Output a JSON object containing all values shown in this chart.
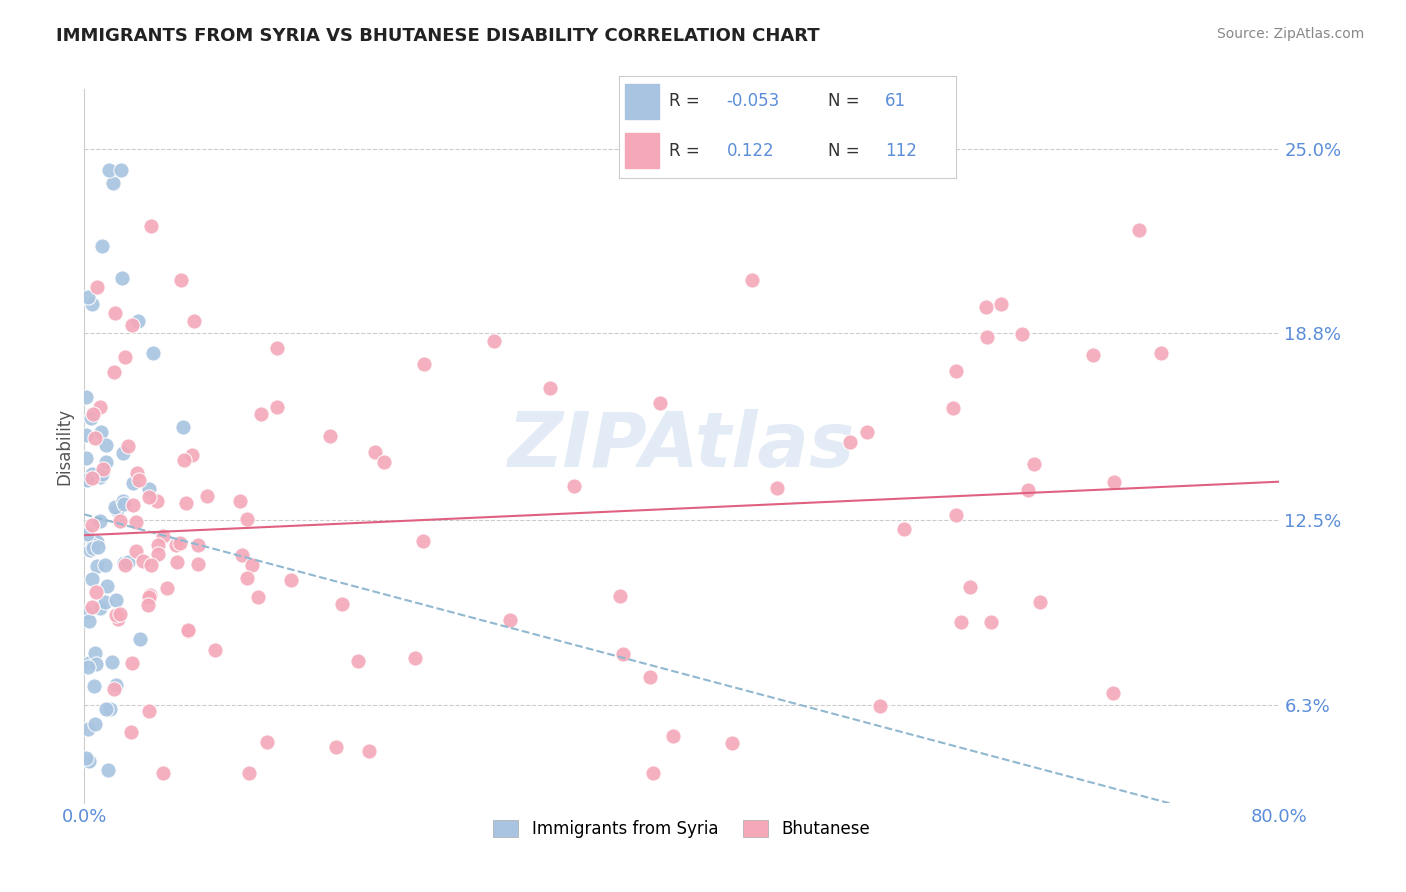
{
  "title": "IMMIGRANTS FROM SYRIA VS BHUTANESE DISABILITY CORRELATION CHART",
  "source": "Source: ZipAtlas.com",
  "ylabel": "Disability",
  "xlim": [
    0.0,
    0.8
  ],
  "ylim": [
    0.03,
    0.27
  ],
  "yticks": [
    0.063,
    0.125,
    0.188,
    0.25
  ],
  "ytick_labels": [
    "6.3%",
    "12.5%",
    "18.8%",
    "25.0%"
  ],
  "xtick_labels": [
    "0.0%",
    "80.0%"
  ],
  "legend_r1": "-0.053",
  "legend_n1": "61",
  "legend_r2": "0.122",
  "legend_n2": "112",
  "color_syria": "#a8c4e0",
  "color_bhutanese": "#f4a8b8",
  "color_line_syria": "#90b8d0",
  "color_line_bhutanese": "#e06080",
  "color_axis_labels": "#5b8dd9",
  "color_legend_text": "#333333",
  "color_legend_values": "#5b8dd9",
  "watermark": "ZIPAtlas"
}
